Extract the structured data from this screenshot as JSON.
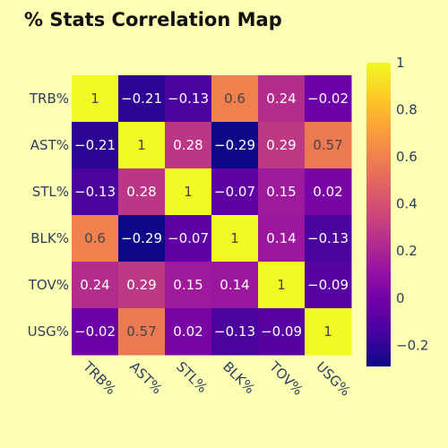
{
  "chart_data": {
    "type": "heatmap",
    "title": "% Stats Correlation Map",
    "x_categories": [
      "TRB%",
      "AST%",
      "STL%",
      "BLK%",
      "TOV%",
      "USG%"
    ],
    "y_categories": [
      "TRB%",
      "AST%",
      "STL%",
      "BLK%",
      "TOV%",
      "USG%"
    ],
    "values": [
      [
        1,
        -0.21,
        -0.13,
        0.6,
        0.24,
        -0.02
      ],
      [
        -0.21,
        1,
        0.28,
        -0.29,
        0.29,
        0.57
      ],
      [
        -0.13,
        0.28,
        1,
        -0.07,
        0.15,
        0.02
      ],
      [
        0.6,
        -0.29,
        -0.07,
        1,
        0.14,
        -0.13
      ],
      [
        0.24,
        0.29,
        0.15,
        0.14,
        1,
        -0.09
      ],
      [
        -0.02,
        0.57,
        0.02,
        -0.13,
        -0.09,
        1
      ]
    ],
    "cell_text": [
      [
        "1",
        "−0.21",
        "−0.13",
        "0.6",
        "0.24",
        "−0.02"
      ],
      [
        "−0.21",
        "1",
        "0.28",
        "−0.29",
        "0.29",
        "0.57"
      ],
      [
        "−0.13",
        "0.28",
        "1",
        "−0.07",
        "0.15",
        "0.02"
      ],
      [
        "0.6",
        "−0.29",
        "−0.07",
        "1",
        "0.14",
        "−0.13"
      ],
      [
        "0.24",
        "0.29",
        "0.15",
        "0.14",
        "1",
        "−0.09"
      ],
      [
        "−0.02",
        "0.57",
        "0.02",
        "−0.13",
        "−0.09",
        "1"
      ]
    ],
    "zlim": [
      -0.29,
      1
    ],
    "colorscale": "plasma",
    "colorbar_ticks": [
      1,
      0.8,
      0.6,
      0.4,
      0.2,
      0
    ],
    "colorbar_tick_labels": [
      "1",
      "0.8",
      "0.6",
      "0.4",
      "0.2",
      "0"
    ],
    "colorbar_extra_tick": -0.2,
    "colorbar_extra_tick_label": "−0.2",
    "x_tick_rotation_deg": 45,
    "background_color": "#ffffb3"
  }
}
